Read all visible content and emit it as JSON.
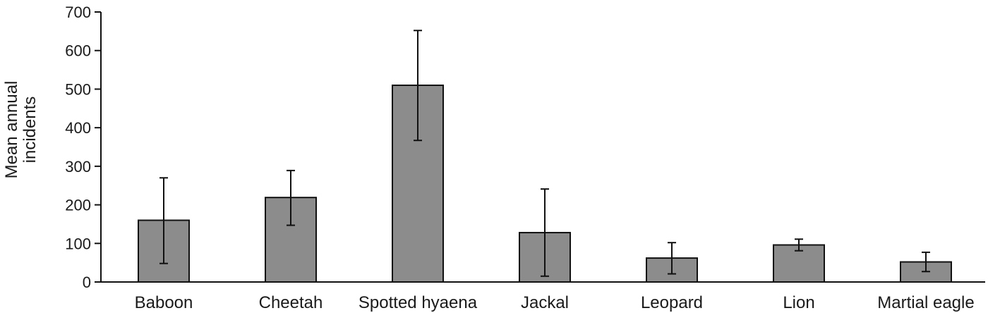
{
  "chart_data": {
    "type": "bar",
    "title": "",
    "xlabel": "",
    "ylabel_lines": [
      "Mean annual",
      "incidents"
    ],
    "categories": [
      "Baboon",
      "Cheetah",
      "Spotted hyaena",
      "Jackal",
      "Leopard",
      "Lion",
      "Martial eagle"
    ],
    "values": [
      160,
      219,
      510,
      128,
      62,
      96,
      52
    ],
    "error_low": [
      48,
      147,
      367,
      15,
      21,
      81,
      27
    ],
    "error_high": [
      270,
      289,
      652,
      241,
      102,
      111,
      77
    ],
    "ylim": [
      0,
      700
    ],
    "yticks": [
      0,
      100,
      200,
      300,
      400,
      500,
      600,
      700
    ],
    "grid": false,
    "bar_color": "#8c8c8c",
    "bar_edge_color": "#111111"
  }
}
